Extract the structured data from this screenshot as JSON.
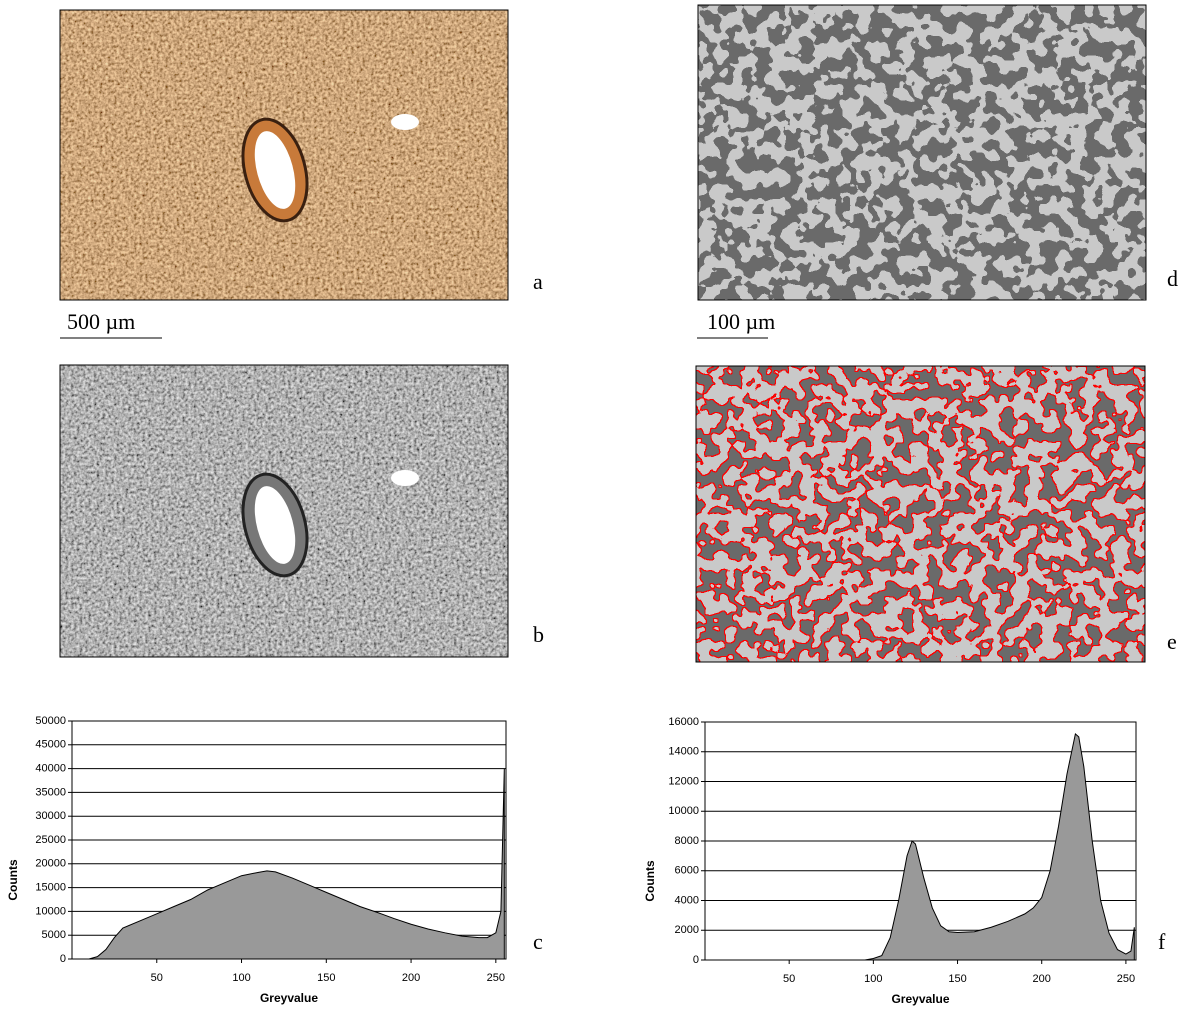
{
  "panel_labels": [
    "a",
    "b",
    "c",
    "d",
    "e",
    "f"
  ],
  "scale_bars": [
    "500 µm",
    "100 µm"
  ],
  "chart_data": [
    {
      "type": "area",
      "y_label": "Counts",
      "x_label": "Greyvalue",
      "color": "#999999",
      "grid": true,
      "x": [
        0,
        10,
        15,
        20,
        25,
        30,
        40,
        50,
        60,
        70,
        80,
        90,
        100,
        110,
        115,
        120,
        130,
        140,
        150,
        160,
        170,
        180,
        190,
        200,
        210,
        220,
        230,
        240,
        245,
        250,
        253,
        255
      ],
      "values": [
        0,
        0,
        500,
        2000,
        4500,
        6500,
        8000,
        9500,
        11000,
        12500,
        14500,
        16000,
        17500,
        18200,
        18500,
        18300,
        17000,
        15500,
        14000,
        12500,
        11000,
        9800,
        8500,
        7300,
        6300,
        5500,
        4800,
        4500,
        4500,
        5500,
        10000,
        40000
      ],
      "xlim": [
        0,
        256
      ],
      "xticks": [
        50,
        100,
        150,
        200,
        250
      ],
      "ylim": [
        0,
        50000
      ],
      "yticks": [
        0,
        5000,
        10000,
        15000,
        20000,
        25000,
        30000,
        35000,
        40000,
        45000,
        50000
      ]
    },
    {
      "type": "area",
      "y_label": "Counts",
      "x_label": "Greyvalue",
      "color": "#999999",
      "grid": true,
      "x": [
        0,
        95,
        100,
        105,
        110,
        115,
        120,
        123,
        125,
        130,
        135,
        140,
        145,
        150,
        160,
        170,
        180,
        190,
        195,
        200,
        205,
        210,
        215,
        220,
        222,
        225,
        230,
        235,
        240,
        245,
        250,
        253,
        255
      ],
      "values": [
        0,
        0,
        100,
        300,
        1500,
        4000,
        7000,
        8000,
        7800,
        5500,
        3500,
        2300,
        1900,
        1850,
        1900,
        2200,
        2600,
        3100,
        3500,
        4200,
        6000,
        9000,
        12500,
        15200,
        15000,
        13000,
        8000,
        4000,
        1800,
        700,
        400,
        600,
        2200
      ],
      "xlim": [
        0,
        256
      ],
      "xticks": [
        50,
        100,
        150,
        200,
        250
      ],
      "ylim": [
        0,
        16000
      ],
      "yticks": [
        0,
        2000,
        4000,
        6000,
        8000,
        10000,
        12000,
        14000,
        16000
      ]
    }
  ]
}
